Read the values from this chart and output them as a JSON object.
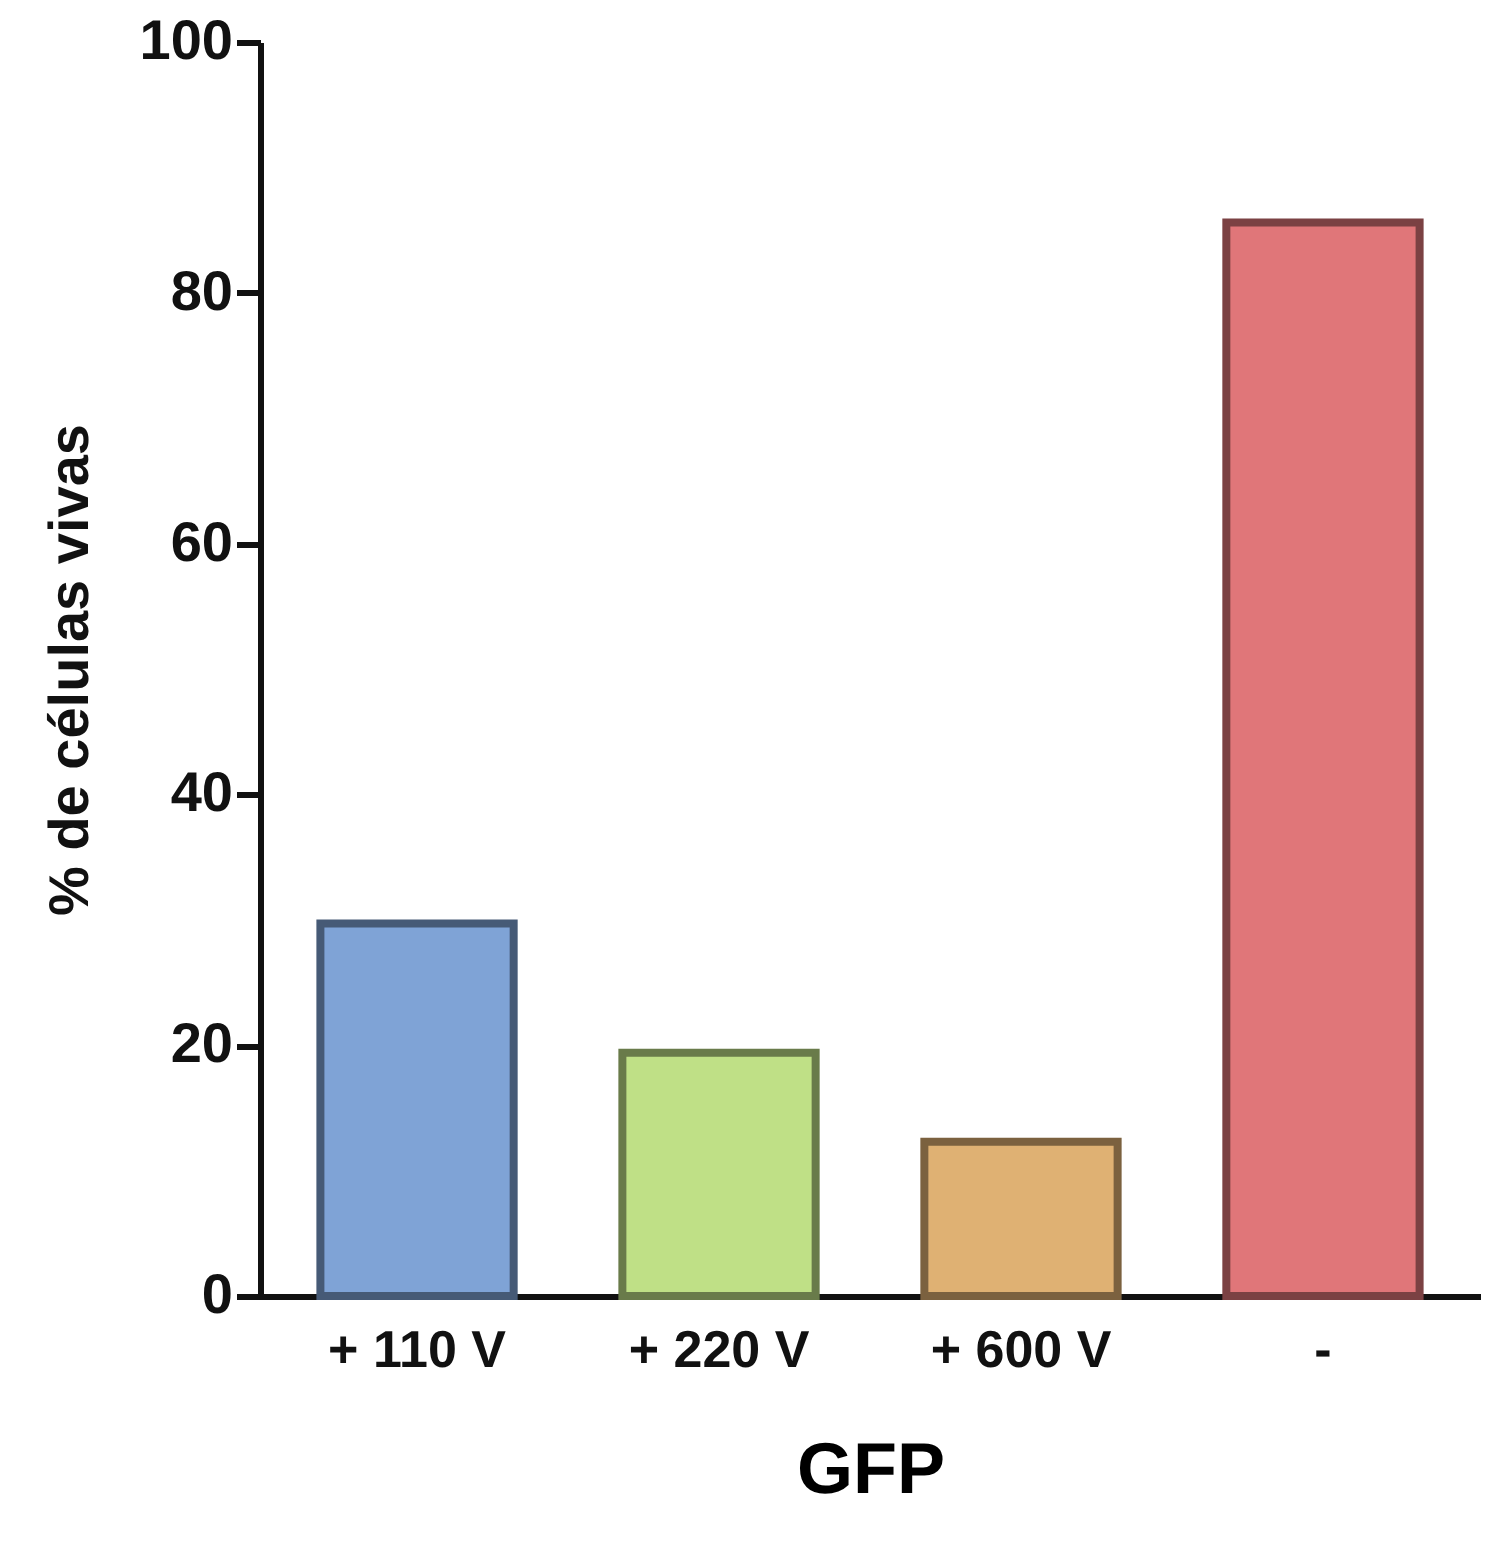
{
  "chart_data": {
    "type": "bar",
    "xlabel": "GFP",
    "ylabel": "% de células vivas",
    "categories": [
      "+ 110 V",
      "+ 220 V",
      "+ 600 V",
      "-"
    ],
    "values": [
      29.7,
      19.4,
      12.3,
      85.6
    ],
    "colors": [
      "#7fa3d6",
      "#bfe086",
      "#dfb173",
      "#e07679"
    ],
    "ylim": [
      0,
      100
    ],
    "yticks": [
      0,
      20,
      40,
      60,
      80,
      100
    ],
    "grid": false
  }
}
